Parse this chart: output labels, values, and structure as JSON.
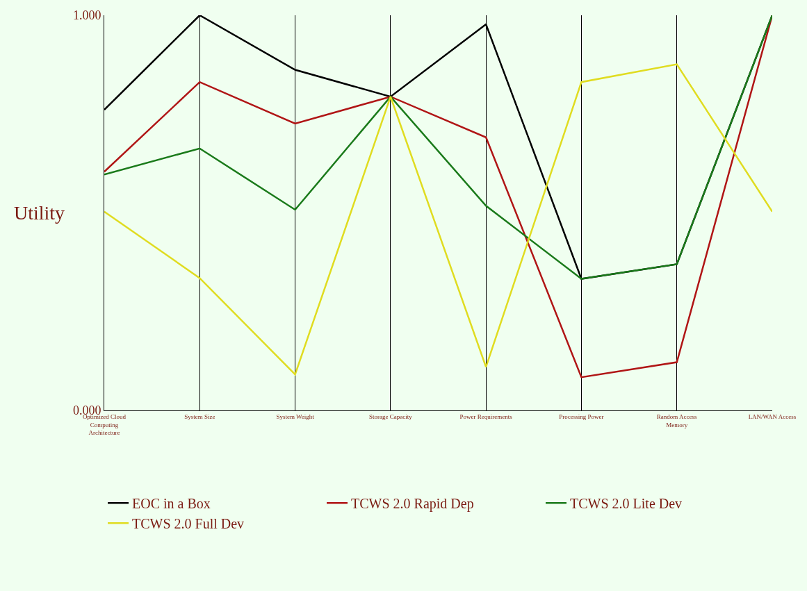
{
  "chart_data": {
    "type": "line",
    "ylabel": "Utility",
    "categories": [
      "Optimized Cloud Computing Architecture",
      "System Size",
      "System Weight",
      "Storage Capacity",
      "Power Requirements",
      "Processing Power",
      "Random Access Memory",
      "LAN/WAN Access"
    ],
    "series": [
      {
        "name": "EOC in a Box",
        "color": "#000000",
        "values": [
          0.761,
          1.0,
          0.862,
          0.794,
          0.977,
          0.333,
          0.37,
          1.0
        ]
      },
      {
        "name": "TCWS 2.0 Rapid Dep",
        "color": "#b01515",
        "values": [
          0.604,
          0.831,
          0.726,
          0.794,
          0.691,
          0.084,
          0.122,
          1.0
        ]
      },
      {
        "name": "TCWS 2.0 Lite Dev",
        "color": "#1a7a1a",
        "values": [
          0.597,
          0.663,
          0.508,
          0.794,
          0.518,
          0.333,
          0.37,
          1.0
        ]
      },
      {
        "name": "TCWS 2.0 Full Dev",
        "color": "#e0dc20",
        "values": [
          0.503,
          0.335,
          0.091,
          0.794,
          0.11,
          0.831,
          0.876,
          0.503
        ]
      }
    ],
    "ylim": [
      0,
      1
    ],
    "yticks": [
      {
        "value": 0,
        "label": "0.000"
      },
      {
        "value": 1,
        "label": "1.000"
      }
    ],
    "grid": "x",
    "legend": "bottom left",
    "marker": "none",
    "line_style": "solid"
  }
}
